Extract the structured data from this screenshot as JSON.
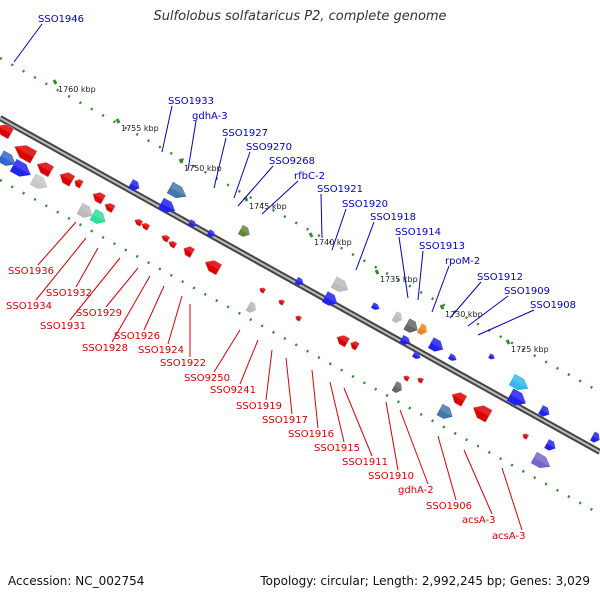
{
  "title": "Sulfolobus solfataricus P2, complete genome",
  "footer": {
    "accession": "Accession: NC_002754",
    "summary": "Topology: circular; Length: 2,992,245 bp; Genes: 3,029"
  },
  "colors": {
    "forward_label": "#0000cc",
    "reverse_label": "#dd0000",
    "backbone": "#666666",
    "tick": "#2e8b2e"
  },
  "ruler": [
    {
      "label": "1760 kbp"
    },
    {
      "label": "1755 kbp"
    },
    {
      "label": "1750 kbp"
    },
    {
      "label": "1745 kbp"
    },
    {
      "label": "1740 kbp"
    },
    {
      "label": "1735 kbp"
    },
    {
      "label": "1730 kbp"
    },
    {
      "label": "1725 kbp"
    }
  ],
  "forward_labels": [
    "SSO1946",
    "SSO1933",
    "gdhA-3",
    "SSO1927",
    "SSO9270",
    "SSO9268",
    "rfbC-2",
    "SSO1921",
    "SSO1920",
    "SSO1918",
    "SSO1914",
    "SSO1913",
    "rpoM-2",
    "SSO1912",
    "SSO1909",
    "SSO1908"
  ],
  "reverse_labels": [
    "SSO1936",
    "SSO1934",
    "SSO1932",
    "SSO1931",
    "SSO1929",
    "SSO1928",
    "SSO1926",
    "SSO1924",
    "SSO1922",
    "SSO9250",
    "SSO9241",
    "SSO1919",
    "SSO1917",
    "SSO1916",
    "SSO1915",
    "SSO1911",
    "SSO1910",
    "gdhA-2",
    "SSO1906",
    "acsA-3",
    "acsA-3"
  ]
}
